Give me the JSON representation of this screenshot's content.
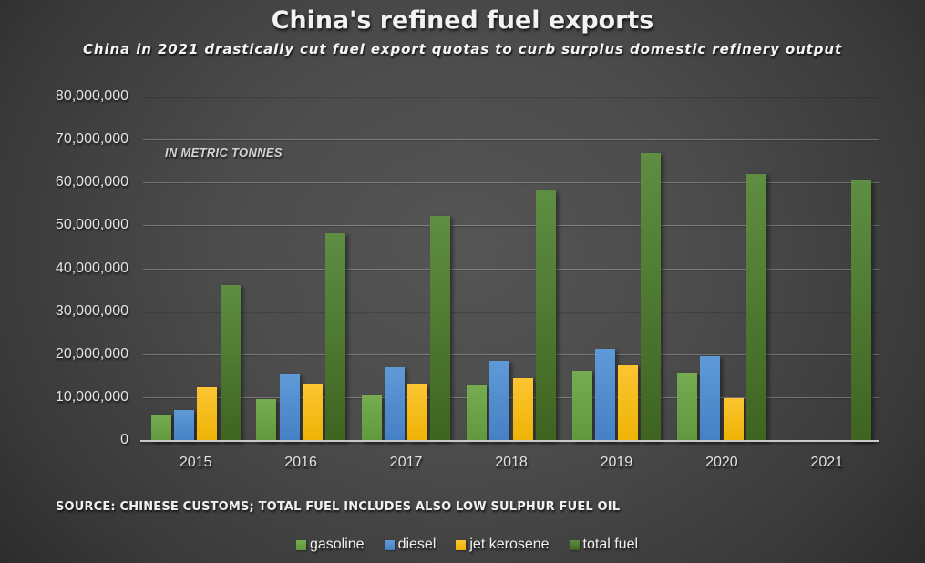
{
  "title": "China's refined fuel exports",
  "subtitle": "China in 2021 drastically cut fuel export quotas to curb surplus domestic refinery output",
  "unit_note": "IN METRIC TONNES",
  "source_note": "SOURCE: CHINESE CUSTOMS; TOTAL FUEL INCLUDES ALSO LOW SULPHUR FUEL OIL",
  "colors": {
    "background_center": "#565656",
    "background_edge": "#2c2c2c",
    "text": "#f2f2f2",
    "gridline": "#7d7d7d",
    "axis_line": "#cfcfcf",
    "gasoline": "#6fa84c",
    "diesel": "#4e8fd0",
    "jet_kerosene": "#f5bc1c",
    "total_fuel": "#4a7429"
  },
  "chart_data": {
    "type": "bar",
    "title": "China's refined fuel exports",
    "subtitle": "China in 2021 drastically cut fuel export quotas to curb surplus domestic refinery output",
    "xlabel": "",
    "ylabel": "IN METRIC TONNES",
    "categories": [
      "2015",
      "2016",
      "2017",
      "2018",
      "2019",
      "2020",
      "2021"
    ],
    "series": [
      {
        "name": "gasoline",
        "color_top": "#76ac51",
        "color_bottom": "#61983d",
        "swatch": "#6ca148",
        "values": [
          5900000,
          9500000,
          10500000,
          12700000,
          16100000,
          15700000,
          null
        ]
      },
      {
        "name": "diesel",
        "color_top": "#5f9ad8",
        "color_bottom": "#4480c4",
        "swatch": "#4e8fd0",
        "values": [
          7100000,
          15300000,
          17000000,
          18400000,
          21300000,
          19600000,
          null
        ]
      },
      {
        "name": "jet kerosene",
        "color_top": "#fcc532",
        "color_bottom": "#eeb304",
        "swatch": "#f5bc1c",
        "values": [
          12300000,
          12900000,
          12900000,
          14400000,
          17400000,
          9800000,
          null
        ]
      },
      {
        "name": "total fuel",
        "color_top": "#5e8e42",
        "color_bottom": "#3e6420",
        "swatch": "#4a7429",
        "values": [
          36100000,
          48200000,
          52300000,
          58200000,
          66900000,
          61900000,
          60400000
        ]
      }
    ],
    "ylim": [
      0,
      80000000
    ],
    "ytick_step": 10000000,
    "ytick_labels": [
      "0",
      "10,000,000",
      "20,000,000",
      "30,000,000",
      "40,000,000",
      "50,000,000",
      "60,000,000",
      "70,000,000",
      "80,000,000"
    ],
    "grid": true,
    "legend_position": "bottom"
  }
}
